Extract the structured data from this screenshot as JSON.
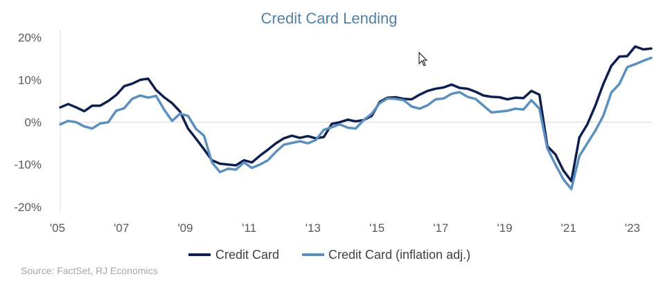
{
  "chart_data": {
    "type": "line",
    "title": "Credit Card Lending",
    "source": "Source: FactSet, RJ Economics",
    "y_ticks": [
      {
        "label": "20%",
        "value": 20
      },
      {
        "label": "10%",
        "value": 10
      },
      {
        "label": "0%",
        "value": 0
      },
      {
        "label": "-10%",
        "value": -10
      },
      {
        "label": "-20%",
        "value": -20
      }
    ],
    "x_ticks": [
      {
        "label": "'05",
        "value": 2005
      },
      {
        "label": "'07",
        "value": 2007
      },
      {
        "label": "'09",
        "value": 2009
      },
      {
        "label": "'11",
        "value": 2011
      },
      {
        "label": "'13",
        "value": 2013
      },
      {
        "label": "'15",
        "value": 2015
      },
      {
        "label": "'17",
        "value": 2017
      },
      {
        "label": "'19",
        "value": 2019
      },
      {
        "label": "'21",
        "value": 2021
      },
      {
        "label": "'23",
        "value": 2023
      }
    ],
    "xlim": [
      2005,
      2023.5
    ],
    "ylim": [
      -21,
      22
    ],
    "grid": false,
    "zero_line": true,
    "legend_position": "bottom",
    "series": [
      {
        "name": "Credit Card",
        "color": "#0d1f4f",
        "points": [
          [
            2005.0,
            3.5
          ],
          [
            2005.25,
            4.3
          ],
          [
            2005.5,
            3.5
          ],
          [
            2005.75,
            2.6
          ],
          [
            2006.0,
            3.9
          ],
          [
            2006.25,
            3.9
          ],
          [
            2006.5,
            5.0
          ],
          [
            2006.75,
            6.4
          ],
          [
            2007.0,
            8.5
          ],
          [
            2007.25,
            9.1
          ],
          [
            2007.5,
            10.0
          ],
          [
            2007.75,
            10.3
          ],
          [
            2008.0,
            7.6
          ],
          [
            2008.25,
            5.9
          ],
          [
            2008.5,
            4.5
          ],
          [
            2008.75,
            2.5
          ],
          [
            2009.0,
            -1.5
          ],
          [
            2009.25,
            -3.9
          ],
          [
            2009.5,
            -6.4
          ],
          [
            2009.75,
            -9.0
          ],
          [
            2010.0,
            -9.8
          ],
          [
            2010.25,
            -10.0
          ],
          [
            2010.5,
            -10.2
          ],
          [
            2010.75,
            -9.0
          ],
          [
            2011.0,
            -9.5
          ],
          [
            2011.25,
            -7.9
          ],
          [
            2011.5,
            -6.5
          ],
          [
            2011.75,
            -5.0
          ],
          [
            2012.0,
            -3.8
          ],
          [
            2012.25,
            -3.2
          ],
          [
            2012.5,
            -3.7
          ],
          [
            2012.75,
            -3.3
          ],
          [
            2013.0,
            -3.8
          ],
          [
            2013.25,
            -3.5
          ],
          [
            2013.5,
            -0.4
          ],
          [
            2013.75,
            0.0
          ],
          [
            2014.0,
            0.6
          ],
          [
            2014.25,
            0.2
          ],
          [
            2014.5,
            0.5
          ],
          [
            2014.75,
            1.5
          ],
          [
            2015.0,
            4.8
          ],
          [
            2015.25,
            5.8
          ],
          [
            2015.5,
            5.9
          ],
          [
            2015.75,
            5.5
          ],
          [
            2016.0,
            5.4
          ],
          [
            2016.25,
            6.5
          ],
          [
            2016.5,
            7.4
          ],
          [
            2016.75,
            7.9
          ],
          [
            2017.0,
            8.2
          ],
          [
            2017.25,
            8.9
          ],
          [
            2017.5,
            8.1
          ],
          [
            2017.75,
            7.9
          ],
          [
            2018.0,
            7.2
          ],
          [
            2018.25,
            6.3
          ],
          [
            2018.5,
            6.0
          ],
          [
            2018.75,
            5.9
          ],
          [
            2019.0,
            5.4
          ],
          [
            2019.25,
            5.8
          ],
          [
            2019.5,
            5.7
          ],
          [
            2019.75,
            7.4
          ],
          [
            2020.0,
            6.5
          ],
          [
            2020.25,
            -5.7
          ],
          [
            2020.5,
            -7.6
          ],
          [
            2020.75,
            -11.4
          ],
          [
            2021.0,
            -13.9
          ],
          [
            2021.25,
            -3.6
          ],
          [
            2021.5,
            -0.5
          ],
          [
            2021.75,
            3.9
          ],
          [
            2022.0,
            9.0
          ],
          [
            2022.25,
            13.3
          ],
          [
            2022.5,
            15.5
          ],
          [
            2022.75,
            15.6
          ],
          [
            2023.0,
            17.9
          ],
          [
            2023.25,
            17.2
          ],
          [
            2023.5,
            17.4
          ]
        ]
      },
      {
        "name": "Credit Card (inflation adj.)",
        "color": "#5a8fbe",
        "points": [
          [
            2005.0,
            -0.5
          ],
          [
            2005.25,
            0.3
          ],
          [
            2005.5,
            0.0
          ],
          [
            2005.75,
            -1.0
          ],
          [
            2006.0,
            -1.5
          ],
          [
            2006.25,
            -0.3
          ],
          [
            2006.5,
            0.0
          ],
          [
            2006.75,
            2.7
          ],
          [
            2007.0,
            3.3
          ],
          [
            2007.25,
            5.5
          ],
          [
            2007.5,
            6.3
          ],
          [
            2007.75,
            5.8
          ],
          [
            2008.0,
            6.2
          ],
          [
            2008.25,
            3.0
          ],
          [
            2008.5,
            0.3
          ],
          [
            2008.75,
            2.0
          ],
          [
            2009.0,
            1.5
          ],
          [
            2009.25,
            -1.6
          ],
          [
            2009.5,
            -3.2
          ],
          [
            2009.75,
            -9.5
          ],
          [
            2010.0,
            -11.8
          ],
          [
            2010.25,
            -11.0
          ],
          [
            2010.5,
            -11.2
          ],
          [
            2010.75,
            -9.5
          ],
          [
            2011.0,
            -10.8
          ],
          [
            2011.25,
            -10.0
          ],
          [
            2011.5,
            -9.0
          ],
          [
            2011.75,
            -7.0
          ],
          [
            2012.0,
            -5.3
          ],
          [
            2012.25,
            -4.9
          ],
          [
            2012.5,
            -4.5
          ],
          [
            2012.75,
            -5.0
          ],
          [
            2013.0,
            -4.2
          ],
          [
            2013.25,
            -1.8
          ],
          [
            2013.5,
            -1.2
          ],
          [
            2013.75,
            -0.5
          ],
          [
            2014.0,
            -1.3
          ],
          [
            2014.25,
            -1.5
          ],
          [
            2014.5,
            0.5
          ],
          [
            2014.75,
            2.0
          ],
          [
            2015.0,
            4.5
          ],
          [
            2015.25,
            5.6
          ],
          [
            2015.5,
            5.5
          ],
          [
            2015.75,
            5.2
          ],
          [
            2016.0,
            3.7
          ],
          [
            2016.25,
            3.2
          ],
          [
            2016.5,
            4.0
          ],
          [
            2016.75,
            5.4
          ],
          [
            2017.0,
            5.6
          ],
          [
            2017.25,
            6.7
          ],
          [
            2017.5,
            7.1
          ],
          [
            2017.75,
            6.0
          ],
          [
            2018.0,
            5.5
          ],
          [
            2018.25,
            3.9
          ],
          [
            2018.5,
            2.3
          ],
          [
            2018.75,
            2.5
          ],
          [
            2019.0,
            2.7
          ],
          [
            2019.25,
            3.2
          ],
          [
            2019.5,
            3.0
          ],
          [
            2019.75,
            5.2
          ],
          [
            2020.0,
            3.2
          ],
          [
            2020.25,
            -6.2
          ],
          [
            2020.5,
            -10.0
          ],
          [
            2020.75,
            -13.5
          ],
          [
            2021.0,
            -15.8
          ],
          [
            2021.25,
            -8.0
          ],
          [
            2021.5,
            -5.0
          ],
          [
            2021.75,
            -2.0
          ],
          [
            2022.0,
            1.5
          ],
          [
            2022.25,
            7.0
          ],
          [
            2022.5,
            9.0
          ],
          [
            2022.75,
            13.0
          ],
          [
            2023.0,
            13.7
          ],
          [
            2023.25,
            14.5
          ],
          [
            2023.5,
            15.2
          ]
        ]
      }
    ]
  }
}
